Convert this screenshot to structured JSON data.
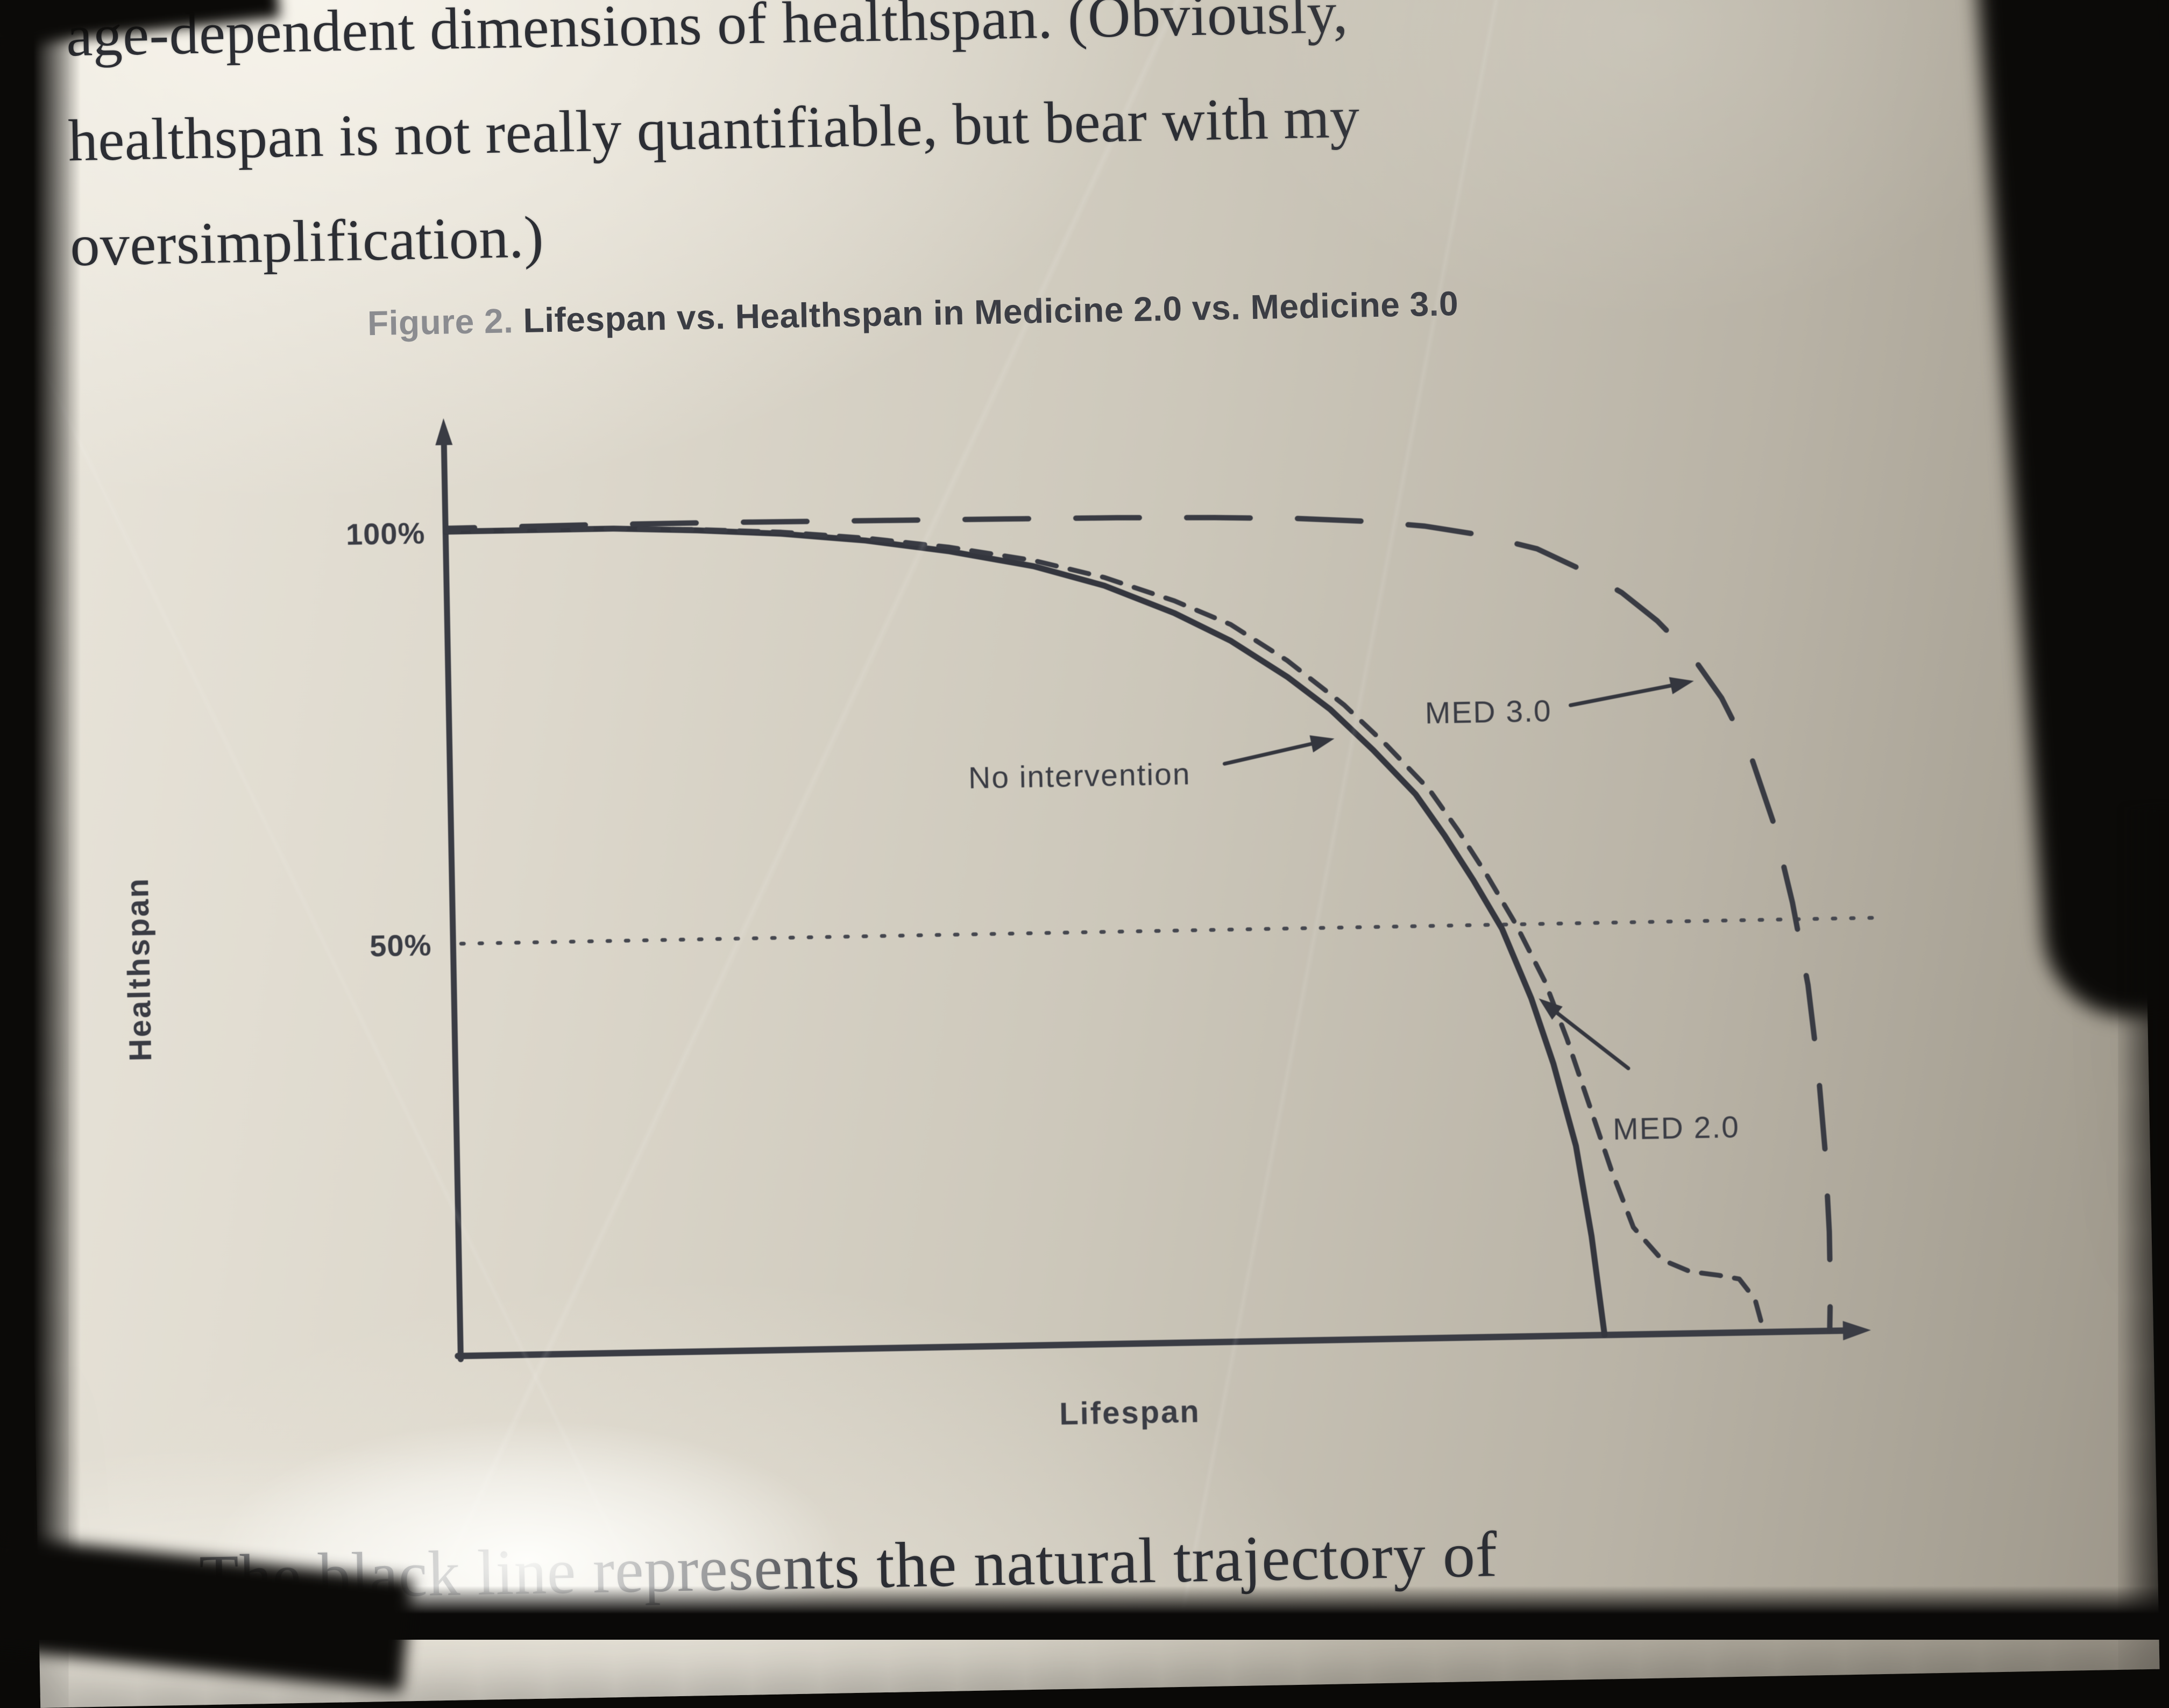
{
  "page": {
    "top_paragraph": {
      "line1": "age-dependent dimensions of healthspan. (Obviously,",
      "line2": "healthspan is not really quantifiable, but bear with my",
      "line3": "oversimplification.)"
    },
    "figure_caption": {
      "prefix": "Figure 2. ",
      "title": "Lifespan vs. Healthspan in Medicine 2.0 vs. Medicine 3.0"
    },
    "bottom_paragraph": "The black line represents the natural trajectory of"
  },
  "chart": {
    "y_axis_label": "Healthspan",
    "x_axis_label": "Lifespan",
    "tick_100": "100%",
    "tick_50": "50%",
    "annotations": {
      "no_intervention": "No intervention",
      "med3": "MED 3.0",
      "med2": "MED 2.0"
    },
    "ink_color": "#3a3c44",
    "caption_gray": "#8b8c90",
    "paper_color": "#ccc7ba"
  },
  "chart_data": {
    "type": "line",
    "title": "Figure 2. Lifespan vs. Healthspan in Medicine 2.0 vs. Medicine 3.0",
    "xlabel": "Lifespan",
    "ylabel": "Healthspan",
    "ylim": [
      0,
      100
    ],
    "yticks": [
      "100%",
      "50%"
    ],
    "xticks": [],
    "grid": "single dotted horizontal reference line at 50%",
    "legend_position": "inline labels with arrows",
    "axis_note": "x axis unlabeled (relative lifespan, % of axis length); both axes end in arrowheads",
    "series": [
      {
        "name": "No intervention",
        "style": "solid",
        "x": [
          0,
          6,
          12,
          18,
          24,
          30,
          36,
          42,
          47,
          52,
          56,
          60,
          63,
          66,
          69,
          71,
          73,
          75,
          77,
          78.5,
          80,
          81,
          81.8
        ],
        "y": [
          100,
          100,
          100,
          99.6,
          99,
          98,
          96.5,
          94.5,
          92,
          88.5,
          85,
          80.5,
          76.5,
          71.5,
          66,
          61,
          55.5,
          49.5,
          41,
          33,
          23,
          12,
          0
        ]
      },
      {
        "name": "MED 2.0",
        "style": "short-dash",
        "dash": [
          36,
          26
        ],
        "x": [
          0,
          6,
          12,
          18,
          24,
          30,
          36,
          42,
          47,
          52,
          56,
          60,
          64,
          67,
          70,
          72,
          74,
          76,
          78,
          79.5,
          81,
          82.5,
          84,
          86,
          88,
          90,
          91.5,
          92.6,
          93.2
        ],
        "y": [
          100,
          100,
          100,
          99.7,
          99.2,
          98.3,
          97,
          95.2,
          93,
          90,
          87,
          82.5,
          77,
          72,
          66.5,
          61.5,
          56,
          50,
          43,
          36,
          28,
          20,
          13,
          9,
          7.5,
          7,
          6.5,
          4,
          0
        ]
      },
      {
        "name": "MED 3.0",
        "style": "long-dash",
        "dash": [
          118,
          88
        ],
        "x": [
          0,
          10,
          20,
          30,
          40,
          48,
          55,
          61,
          66,
          70,
          74,
          78,
          81,
          84,
          86.5,
          89,
          91,
          93,
          94.5,
          95.8,
          96.8,
          97.4,
          97.8,
          98,
          98,
          97.9
        ],
        "y": [
          100.4,
          100.5,
          100.5,
          100.4,
          100.3,
          100.2,
          100,
          99.7,
          99.2,
          98.5,
          97.3,
          95.5,
          93,
          90,
          86.5,
          82,
          77,
          70,
          62,
          52,
          42,
          32,
          22,
          12,
          5,
          0
        ]
      }
    ],
    "reference_line": {
      "y": 50,
      "style": "dotted"
    }
  }
}
